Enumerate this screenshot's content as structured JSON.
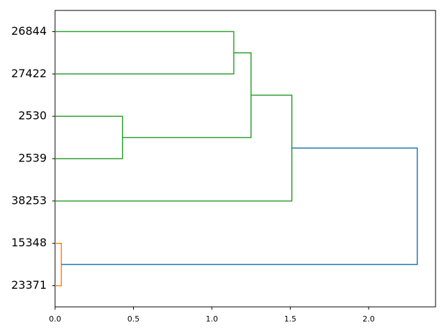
{
  "chart_data": {
    "type": "dendrogram",
    "orientation": "right",
    "xlim": [
      0,
      2.4267
    ],
    "xticks": [
      {
        "value": 0,
        "label": "0.0"
      },
      0.5,
      {
        "value": 1,
        "label": "1.0"
      },
      1.5,
      {
        "value": 2,
        "label": "2.0"
      }
    ],
    "tree": {
      "height": 2.31,
      "color": "#1f77b4",
      "children": [
        {
          "height": 1.51,
          "color": "#2ca02c",
          "children": [
            {
              "height": 1.25,
              "color": "#2ca02c",
              "children": [
                {
                  "height": 1.14,
                  "color": "#2ca02c",
                  "children": [
                    {
                      "label": "26844"
                    },
                    {
                      "label": "27422"
                    }
                  ]
                },
                {
                  "height": 0.43,
                  "color": "#2ca02c",
                  "children": [
                    {
                      "label": "2530"
                    },
                    {
                      "label": "2539"
                    }
                  ]
                }
              ]
            },
            {
              "label": "38253"
            }
          ]
        },
        {
          "height": 0.04,
          "color": "#ff7f0e",
          "children": [
            {
              "label": "15348"
            },
            {
              "label": "23371"
            }
          ]
        }
      ]
    }
  }
}
